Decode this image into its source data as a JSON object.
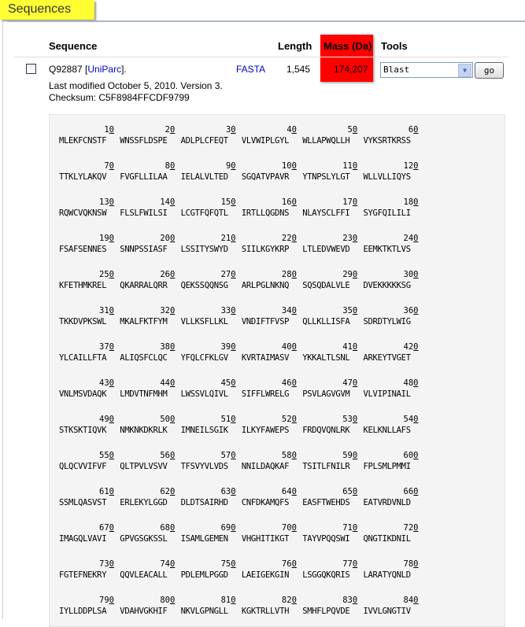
{
  "section_title": "Sequences",
  "table": {
    "headers": {
      "sequence": "Sequence",
      "length": "Length",
      "mass": "Mass (Da)",
      "tools": "Tools"
    },
    "row": {
      "accession": "Q92887",
      "uniparc_open": "[",
      "uniparc_link": "UniParc",
      "uniparc_close": "].",
      "fasta_link": "FASTA",
      "length": "1,545",
      "mass": "174,207",
      "modified": "Last modified October 5, 2010. Version 3.",
      "checksum": "Checksum: C5F8984FFCDF9799",
      "tool_selected": "Blast",
      "go_label": "go"
    }
  },
  "colors": {
    "highlight": "#ff0000",
    "tab": "#ffff33"
  },
  "sequence_rows": [
    {
      "nums": [
        "10",
        "20",
        "30",
        "40",
        "50",
        "60"
      ],
      "groups": [
        "MLEKFCNSTF",
        "WNSSFLDSPE",
        "ADLPLCFEQT",
        "VLVWIPLGYL",
        "WLLAPWQLLH",
        "VYKSRTKRSS"
      ]
    },
    {
      "nums": [
        "70",
        "80",
        "90",
        "100",
        "110",
        "120"
      ],
      "groups": [
        "TTKLYLAKQV",
        "FVGFLLILAA",
        "IELALVLTED",
        "SGQATVPAVR",
        "YTNPSLYLGT",
        "WLLVLLIQYS"
      ]
    },
    {
      "nums": [
        "130",
        "140",
        "150",
        "160",
        "170",
        "180"
      ],
      "groups": [
        "RQWCVQKNSW",
        "FLSLFWILSI",
        "LCGTFQFQTL",
        "IRTLLQGDNS",
        "NLAYSCLFFI",
        "SYGFQILILI"
      ]
    },
    {
      "nums": [
        "190",
        "200",
        "210",
        "220",
        "230",
        "240"
      ],
      "groups": [
        "FSAFSENNES",
        "SNNPSSIASF",
        "LSSITYSWYD",
        "SIILKGYKRP",
        "LTLEDVWEVD",
        "EEMKTKTLVS"
      ]
    },
    {
      "nums": [
        "250",
        "260",
        "270",
        "280",
        "290",
        "300"
      ],
      "groups": [
        "KFETHMKREL",
        "QKARRALQRR",
        "QEKSSQQNSG",
        "ARLPGLNKNQ",
        "SQSQDALVLE",
        "DVEKKKKKSG"
      ]
    },
    {
      "nums": [
        "310",
        "320",
        "330",
        "340",
        "350",
        "360"
      ],
      "groups": [
        "TKKDVPKSWL",
        "MKALFKTFYM",
        "VLLKSFLLKL",
        "VNDIFTFVSP",
        "QLLKLLISFA",
        "SDRDTYLWIG"
      ]
    },
    {
      "nums": [
        "370",
        "380",
        "390",
        "400",
        "410",
        "420"
      ],
      "groups": [
        "YLCAILLFTA",
        "ALIQSFCLQC",
        "YFQLCFKLGV",
        "KVRTAIMASV",
        "YKKALTLSNL",
        "ARKEYTVGET"
      ]
    },
    {
      "nums": [
        "430",
        "440",
        "450",
        "460",
        "470",
        "480"
      ],
      "groups": [
        "VNLMSVDAQK",
        "LMDVTNFMHM",
        "LWSSVLQIVL",
        "SIFFLWRELG",
        "PSVLAGVGVM",
        "VLVIPINAIL"
      ]
    },
    {
      "nums": [
        "490",
        "500",
        "510",
        "520",
        "530",
        "540"
      ],
      "groups": [
        "STKSKTIQVK",
        "NMKNKDKRLK",
        "IMNEILSGIK",
        "ILKYFAWEPS",
        "FRDQVQNLRK",
        "KELKNLLAFS"
      ]
    },
    {
      "nums": [
        "550",
        "560",
        "570",
        "580",
        "590",
        "600"
      ],
      "groups": [
        "QLQCVVIFVF",
        "QLTPVLVSVV",
        "TFSVYVLVDS",
        "NNILDAQKAF",
        "TSITLFNILR",
        "FPLSMLPMMI"
      ]
    },
    {
      "nums": [
        "610",
        "620",
        "630",
        "640",
        "650",
        "660"
      ],
      "groups": [
        "SSMLQASVST",
        "ERLEKYLGGD",
        "DLDTSAIRHD",
        "CNFDKAMQFS",
        "EASFTWEHDS",
        "EATVRDVNLD"
      ]
    },
    {
      "nums": [
        "670",
        "680",
        "690",
        "700",
        "710",
        "720"
      ],
      "groups": [
        "IMAGQLVAVI",
        "GPVGSGKSSL",
        "ISAMLGEMEN",
        "VHGHITIKGT",
        "TAYVPQQSWI",
        "QNGTIKDNIL"
      ]
    },
    {
      "nums": [
        "730",
        "740",
        "750",
        "760",
        "770",
        "780"
      ],
      "groups": [
        "FGTEFNEKRY",
        "QQVLEACALL",
        "PDLEMLPGGD",
        "LAEIGEKGIN",
        "LSGGQKQRIS",
        "LARATYQNLD"
      ]
    },
    {
      "nums": [
        "790",
        "800",
        "810",
        "820",
        "830",
        "840"
      ],
      "groups": [
        "IYLLDDPLSA",
        "VDAHVGKHIF",
        "NKVLGPNGLL",
        "KGKTRLLVTH",
        "SMHFLPQVDE",
        "IVVLGNGTIV"
      ]
    }
  ]
}
